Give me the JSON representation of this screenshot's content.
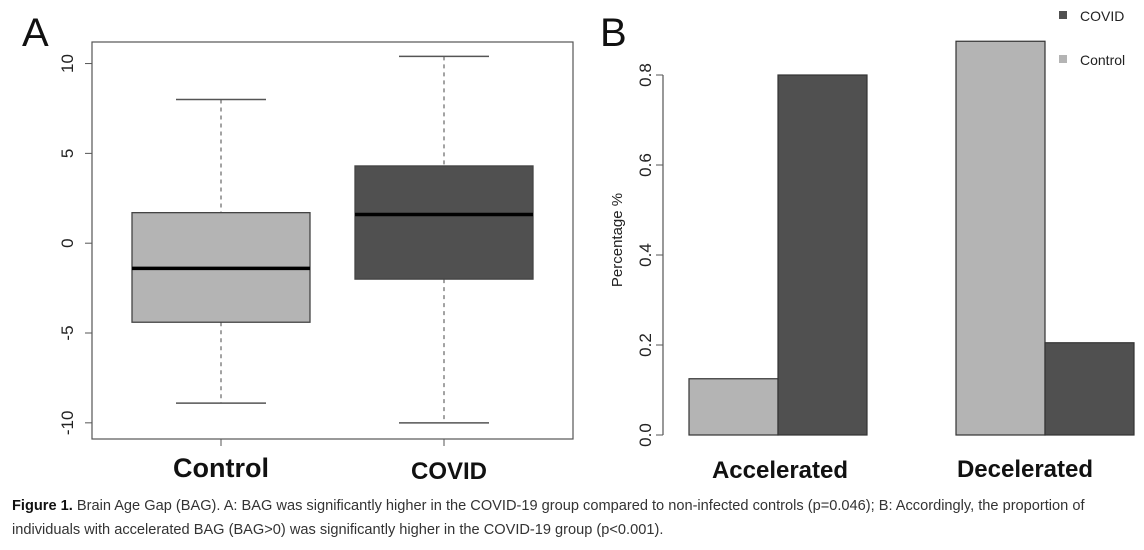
{
  "chart_data": [
    {
      "type": "box",
      "panel": "A",
      "categories": [
        "Control",
        "COVID"
      ],
      "boxes": [
        {
          "name": "Control",
          "whisker_low": -8.9,
          "q1": -4.4,
          "median": -1.4,
          "q3": 1.7,
          "whisker_high": 8.0,
          "color": "#b4b4b4"
        },
        {
          "name": "COVID",
          "whisker_low": -10.0,
          "q1": -2.0,
          "median": 1.6,
          "q3": 4.3,
          "whisker_high": 10.4,
          "color": "#505050"
        }
      ],
      "yticks": [
        -10,
        -5,
        0,
        5,
        10
      ],
      "tick_labels": [
        "-10",
        "-5",
        "0",
        "5",
        "10"
      ],
      "ylim": [
        -10.9,
        11.2
      ],
      "ylabel": "",
      "xlabel": ""
    },
    {
      "type": "bar",
      "panel": "B",
      "categories": [
        "Accelerated",
        "Decelerated"
      ],
      "series": [
        {
          "name": "Control",
          "values": [
            0.125,
            0.875
          ],
          "color": "#b4b4b4"
        },
        {
          "name": "COVID",
          "values": [
            0.8,
            0.205
          ],
          "color": "#505050"
        }
      ],
      "yticks": [
        0.0,
        0.2,
        0.4,
        0.6,
        0.8
      ],
      "tick_labels": [
        "0.0",
        "0.2",
        "0.4",
        "0.6",
        "0.8"
      ],
      "ylim": [
        0,
        0.9
      ],
      "ylabel": "Percentage %",
      "legend": [
        "COVID",
        "Control"
      ],
      "legend_position": "top-right"
    }
  ],
  "caption": {
    "label": "Figure 1.",
    "text": " Brain Age Gap (BAG). A: BAG was significantly higher in the COVID-19 group compared to non-infected controls (p=0.046); B: Accordingly, the proportion of individuals with accelerated BAG (BAG>0) was significantly higher in the COVID-19 group (p<0.001)."
  }
}
